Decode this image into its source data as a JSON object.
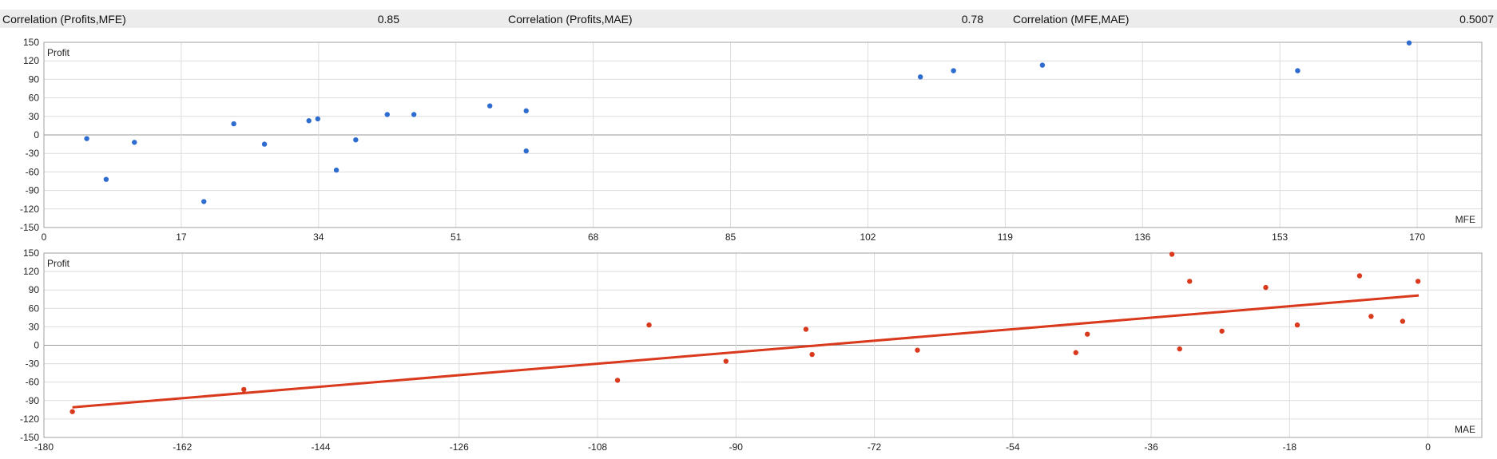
{
  "header": {
    "items": [
      {
        "label": "Correlation (Profits,MFE)",
        "value": "0.85"
      },
      {
        "label": "Correlation (Profits,MAE)",
        "value": "0.78"
      },
      {
        "label": "Correlation (MFE,MAE)",
        "value": "0.5007"
      }
    ]
  },
  "colors": {
    "mfe_points": "#2f6ccf",
    "mae_points": "#d9391c",
    "trend_line": "#d9391c",
    "grid": "#dcdcdc",
    "zero_line": "#9a9a9a",
    "header_bg": "#ececec"
  },
  "chart_data": [
    {
      "type": "scatter",
      "ylabel": "Profit",
      "xlabel": "MFE",
      "xlim": [
        0,
        178
      ],
      "ylim": [
        -150,
        150
      ],
      "x_ticks": [
        0,
        17,
        34,
        51,
        68,
        85,
        102,
        119,
        136,
        153,
        170
      ],
      "y_ticks": [
        150,
        120,
        90,
        60,
        30,
        0,
        -30,
        -60,
        -90,
        -120,
        -150
      ],
      "grid": true,
      "series": [
        {
          "points": [
            {
              "x": 5.3,
              "y": -6
            },
            {
              "x": 7.7,
              "y": -72
            },
            {
              "x": 11.2,
              "y": -12
            },
            {
              "x": 19.8,
              "y": -108
            },
            {
              "x": 23.5,
              "y": 18
            },
            {
              "x": 27.3,
              "y": -15
            },
            {
              "x": 32.8,
              "y": 23
            },
            {
              "x": 33.9,
              "y": 26
            },
            {
              "x": 36.2,
              "y": -57
            },
            {
              "x": 38.6,
              "y": -8
            },
            {
              "x": 42.5,
              "y": 33
            },
            {
              "x": 45.8,
              "y": 33
            },
            {
              "x": 55.2,
              "y": 47
            },
            {
              "x": 59.7,
              "y": 39
            },
            {
              "x": 59.7,
              "y": -26
            },
            {
              "x": 108.5,
              "y": 94
            },
            {
              "x": 112.6,
              "y": 104
            },
            {
              "x": 123.6,
              "y": 113
            },
            {
              "x": 155.2,
              "y": 104
            },
            {
              "x": 169,
              "y": 149
            }
          ]
        }
      ]
    },
    {
      "type": "scatter",
      "ylabel": "Profit",
      "xlabel": "MAE",
      "xlim": [
        -180,
        7
      ],
      "ylim": [
        -150,
        150
      ],
      "x_ticks": [
        -180,
        -162,
        -144,
        -126,
        -108,
        -90,
        -72,
        -54,
        -36,
        -18,
        0
      ],
      "y_ticks": [
        150,
        120,
        90,
        60,
        30,
        0,
        -30,
        -60,
        -90,
        -120,
        -150
      ],
      "grid": true,
      "trend_line": {
        "x": [
          -176.3,
          -1.2
        ],
        "y": [
          -101,
          81
        ]
      },
      "series": [
        {
          "points": [
            {
              "x": -176.3,
              "y": -108
            },
            {
              "x": -154,
              "y": -72
            },
            {
              "x": -105.4,
              "y": -57
            },
            {
              "x": -101.3,
              "y": 33
            },
            {
              "x": -91.3,
              "y": -26
            },
            {
              "x": -80.9,
              "y": 26
            },
            {
              "x": -80.1,
              "y": -15
            },
            {
              "x": -66.4,
              "y": -8
            },
            {
              "x": -45.8,
              "y": -12
            },
            {
              "x": -44.3,
              "y": 18
            },
            {
              "x": -33.3,
              "y": 148
            },
            {
              "x": -32.3,
              "y": -6
            },
            {
              "x": -31,
              "y": 104
            },
            {
              "x": -26.8,
              "y": 23
            },
            {
              "x": -21.1,
              "y": 94
            },
            {
              "x": -17,
              "y": 33
            },
            {
              "x": -8.9,
              "y": 113
            },
            {
              "x": -7.4,
              "y": 47
            },
            {
              "x": -3.3,
              "y": 39
            },
            {
              "x": -1.3,
              "y": 104
            }
          ]
        }
      ]
    }
  ]
}
